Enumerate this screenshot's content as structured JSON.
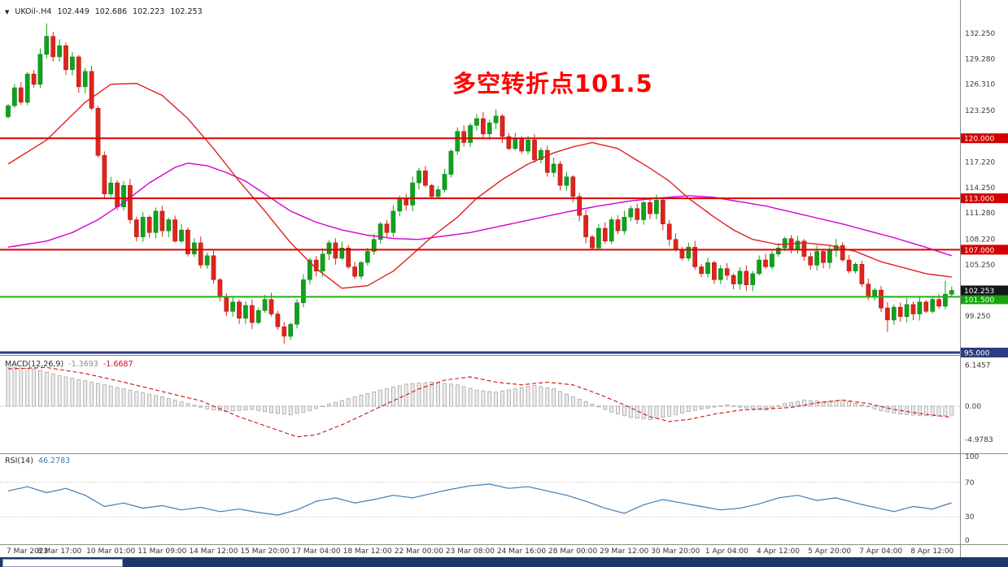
{
  "symbol_bar": {
    "collapse_icon": "▼",
    "title": "UKOil-.H4",
    "open": "102.449",
    "high": "102.686",
    "low": "102.223",
    "close": "102.253"
  },
  "annotation": {
    "text": "多空转折点101.5",
    "color": "#ff0000"
  },
  "colors": {
    "up": "#10a21c",
    "up_stroke": "#0b7a14",
    "down": "#df241c",
    "down_stroke": "#a81510",
    "ma_red": "#e02020",
    "ma_magenta": "#d400d4",
    "rsi": "#3f7cb6",
    "macd_bar_fill": "#ededed",
    "macd_bar_stroke": "#9e9e9e",
    "macd_signal": "#cc1111",
    "axis_text": "#3a3a3a",
    "separator": "#8c8c8c",
    "bottom_bar": "#1e3566"
  },
  "chart_data": {
    "type": "candlestick",
    "symbol": "UKOil-.H4",
    "timeframe": "H4",
    "ohlc_current": {
      "open": 102.449,
      "high": 102.686,
      "low": 102.223,
      "close": 102.253
    },
    "main": {
      "first_open": 122.5,
      "closes": [
        123.8,
        125.9,
        124.2,
        127.5,
        126.3,
        129.8,
        131.9,
        129.5,
        130.8,
        128.0,
        129.5,
        126.0,
        127.8,
        123.5,
        118.0,
        113.5,
        114.8,
        112.0,
        114.5,
        110.5,
        108.5,
        110.8,
        109.0,
        111.5,
        109.2,
        110.5,
        108.0,
        109.3,
        106.5,
        107.8,
        105.2,
        106.3,
        103.5,
        101.5,
        99.8,
        100.9,
        99.0,
        100.5,
        98.5,
        99.9,
        101.2,
        99.5,
        98.0,
        96.9,
        98.3,
        100.8,
        103.5,
        105.8,
        104.5,
        106.5,
        107.8,
        106.0,
        107.2,
        105.0,
        103.9,
        105.5,
        106.8,
        108.2,
        110.0,
        109.0,
        111.5,
        113.0,
        112.2,
        114.8,
        116.2,
        114.5,
        113.2,
        114.0,
        115.8,
        118.5,
        120.8,
        119.5,
        121.5,
        122.3,
        120.5,
        121.8,
        122.6,
        120.2,
        118.8,
        120.0,
        118.5,
        119.8,
        117.5,
        118.6,
        116.0,
        117.0,
        114.5,
        115.5,
        113.2,
        111.0,
        108.5,
        107.2,
        109.5,
        108.0,
        110.5,
        109.2,
        110.8,
        111.8,
        110.5,
        112.5,
        111.2,
        112.8,
        110.0,
        108.2,
        107.0,
        106.0,
        107.3,
        105.0,
        104.2,
        105.5,
        103.5,
        104.8,
        104.0,
        103.0,
        104.5,
        102.9,
        104.2,
        105.8,
        105.0,
        106.5,
        107.2,
        108.3,
        107.0,
        108.0,
        106.2,
        105.2,
        106.8,
        105.5,
        106.9,
        107.5,
        105.8,
        104.5,
        105.3,
        103.0,
        101.5,
        102.3,
        100.2,
        98.8,
        100.3,
        99.2,
        100.6,
        99.5,
        100.9,
        99.8,
        101.2,
        100.4,
        101.8,
        102.253
      ],
      "wick_overrides": {
        "6": {
          "h": 133.4
        },
        "15": {
          "l": 112.9
        },
        "43": {
          "l": 96.0
        },
        "76": {
          "h": 123.4
        },
        "137": {
          "l": 97.4
        },
        "146": {
          "h": 103.4
        }
      },
      "y_ticks": [
        {
          "label": "132.250",
          "price": 132.25
        },
        {
          "label": "129.280",
          "price": 129.28
        },
        {
          "label": "126.310",
          "price": 126.31
        },
        {
          "label": "123.250",
          "price": 123.25
        },
        {
          "label": "117.220",
          "price": 117.22
        },
        {
          "label": "114.250",
          "price": 114.25
        },
        {
          "label": "111.280",
          "price": 111.28
        },
        {
          "label": "108.220",
          "price": 108.22
        },
        {
          "label": "105.250",
          "price": 105.25
        },
        {
          "label": "99.250",
          "price": 99.25
        }
      ],
      "hlines": [
        {
          "price": 120.0,
          "label": "120.000",
          "color": "#dd0000",
          "width": 2,
          "badge": "#d40000"
        },
        {
          "price": 113.0,
          "label": "113.000",
          "color": "#dd0000",
          "width": 2,
          "badge": "#d40000"
        },
        {
          "price": 107.0,
          "label": "107.000",
          "color": "#dd0000",
          "width": 2,
          "badge": "#d40000"
        },
        {
          "price": 101.5,
          "label": "101.500",
          "color": "#1fb30e",
          "width": 2,
          "badge": "#17a30b",
          "dy": 3
        },
        {
          "price": 95.0,
          "label": "95.000",
          "color": "#2e3c80",
          "width": 3,
          "badge": "#2e3c80"
        }
      ],
      "current_price": {
        "label": "102.253",
        "price": 102.253,
        "bg": "#14181c"
      },
      "ma_red_anchors": [
        [
          0,
          117.0
        ],
        [
          6,
          119.8
        ],
        [
          12,
          124.2
        ],
        [
          16,
          126.3
        ],
        [
          20,
          126.4
        ],
        [
          24,
          125.0
        ],
        [
          28,
          122.3
        ],
        [
          32,
          118.8
        ],
        [
          36,
          115.0
        ],
        [
          40,
          111.5
        ],
        [
          44,
          107.8
        ],
        [
          48,
          104.8
        ],
        [
          52,
          102.5
        ],
        [
          56,
          102.8
        ],
        [
          60,
          104.5
        ],
        [
          62,
          105.8
        ],
        [
          66,
          108.5
        ],
        [
          70,
          110.8
        ],
        [
          73,
          113.0
        ],
        [
          77,
          115.2
        ],
        [
          81,
          117.0
        ],
        [
          85,
          118.3
        ],
        [
          88,
          119.0
        ],
        [
          91,
          119.5
        ],
        [
          95,
          118.8
        ],
        [
          100,
          116.5
        ],
        [
          103,
          115.0
        ],
        [
          106,
          113.0
        ],
        [
          110,
          110.8
        ],
        [
          113,
          109.3
        ],
        [
          116,
          108.2
        ],
        [
          120,
          107.6
        ],
        [
          124,
          107.8
        ],
        [
          128,
          107.5
        ],
        [
          132,
          106.8
        ],
        [
          136,
          105.6
        ],
        [
          140,
          104.8
        ],
        [
          143,
          104.2
        ],
        [
          147,
          103.8
        ]
      ],
      "ma_magenta_anchors": [
        [
          0,
          107.3
        ],
        [
          6,
          108.0
        ],
        [
          10,
          109.0
        ],
        [
          14,
          110.5
        ],
        [
          18,
          112.5
        ],
        [
          22,
          114.8
        ],
        [
          26,
          116.6
        ],
        [
          28,
          117.1
        ],
        [
          31,
          116.8
        ],
        [
          34,
          116.0
        ],
        [
          37,
          115.0
        ],
        [
          40,
          113.5
        ],
        [
          44,
          111.5
        ],
        [
          48,
          110.2
        ],
        [
          52,
          109.3
        ],
        [
          56,
          108.7
        ],
        [
          60,
          108.3
        ],
        [
          64,
          108.2
        ],
        [
          68,
          108.6
        ],
        [
          72,
          109.0
        ],
        [
          77,
          109.8
        ],
        [
          82,
          110.6
        ],
        [
          87,
          111.4
        ],
        [
          92,
          112.1
        ],
        [
          97,
          112.7
        ],
        [
          101,
          113.0
        ],
        [
          106,
          113.3
        ],
        [
          110,
          113.1
        ],
        [
          114,
          112.6
        ],
        [
          118,
          112.1
        ],
        [
          122,
          111.4
        ],
        [
          126,
          110.7
        ],
        [
          130,
          110.0
        ],
        [
          134,
          109.2
        ],
        [
          138,
          108.4
        ],
        [
          142,
          107.5
        ],
        [
          147,
          106.3
        ]
      ]
    },
    "macd": {
      "label": "MACD(12,26,9)",
      "value_main": "-1.3693",
      "value_signal": "-1.6687",
      "scale_labels": [
        {
          "v": 6.1457,
          "label": "6.1457"
        },
        {
          "v": 0,
          "label": "0.00"
        },
        {
          "v": -4.9783,
          "label": "-4.9783"
        }
      ],
      "hist_anchors": [
        [
          0,
          5.9
        ],
        [
          4,
          5.6
        ],
        [
          8,
          4.6
        ],
        [
          12,
          3.8
        ],
        [
          16,
          3.0
        ],
        [
          20,
          2.2
        ],
        [
          24,
          1.4
        ],
        [
          28,
          0.4
        ],
        [
          31,
          -0.4
        ],
        [
          34,
          -0.8
        ],
        [
          38,
          -0.5
        ],
        [
          41,
          -1.0
        ],
        [
          44,
          -1.3
        ],
        [
          47,
          -0.7
        ],
        [
          50,
          0.3
        ],
        [
          54,
          1.4
        ],
        [
          58,
          2.4
        ],
        [
          62,
          3.3
        ],
        [
          66,
          3.6
        ],
        [
          70,
          3.2
        ],
        [
          73,
          2.4
        ],
        [
          76,
          2.1
        ],
        [
          79,
          2.6
        ],
        [
          82,
          3.1
        ],
        [
          85,
          2.6
        ],
        [
          88,
          1.4
        ],
        [
          91,
          0.3
        ],
        [
          94,
          -0.9
        ],
        [
          97,
          -1.7
        ],
        [
          100,
          -2.0
        ],
        [
          103,
          -1.5
        ],
        [
          106,
          -0.8
        ],
        [
          109,
          -0.3
        ],
        [
          112,
          0.2
        ],
        [
          115,
          -0.3
        ],
        [
          118,
          -0.6
        ],
        [
          121,
          0.4
        ],
        [
          124,
          0.9
        ],
        [
          127,
          0.7
        ],
        [
          130,
          0.9
        ],
        [
          133,
          0.2
        ],
        [
          136,
          -0.7
        ],
        [
          139,
          -1.2
        ],
        [
          142,
          -1.4
        ],
        [
          145,
          -1.5
        ],
        [
          147,
          -1.37
        ]
      ],
      "signal_anchors": [
        [
          0,
          5.6
        ],
        [
          6,
          5.8
        ],
        [
          12,
          4.9
        ],
        [
          18,
          3.6
        ],
        [
          24,
          2.2
        ],
        [
          30,
          0.8
        ],
        [
          36,
          -1.6
        ],
        [
          42,
          -3.6
        ],
        [
          45,
          -4.6
        ],
        [
          48,
          -4.3
        ],
        [
          52,
          -2.8
        ],
        [
          56,
          -1.0
        ],
        [
          60,
          0.8
        ],
        [
          64,
          2.6
        ],
        [
          68,
          3.9
        ],
        [
          72,
          4.4
        ],
        [
          76,
          3.6
        ],
        [
          80,
          3.2
        ],
        [
          84,
          3.6
        ],
        [
          88,
          3.2
        ],
        [
          92,
          1.8
        ],
        [
          96,
          0.2
        ],
        [
          100,
          -1.6
        ],
        [
          103,
          -2.3
        ],
        [
          106,
          -2.0
        ],
        [
          110,
          -1.2
        ],
        [
          114,
          -0.6
        ],
        [
          118,
          -0.4
        ],
        [
          122,
          -0.2
        ],
        [
          126,
          0.5
        ],
        [
          130,
          0.9
        ],
        [
          134,
          0.4
        ],
        [
          138,
          -0.5
        ],
        [
          142,
          -1.1
        ],
        [
          147,
          -1.67
        ]
      ]
    },
    "rsi": {
      "label": "RSI(14)",
      "value": "46.2783",
      "scale_labels": [
        {
          "v": 100,
          "label": "100"
        },
        {
          "v": 70,
          "label": "70"
        },
        {
          "v": 30,
          "label": "30"
        },
        {
          "v": 0,
          "label": "0"
        }
      ],
      "levels": [
        70,
        30
      ],
      "anchors": [
        [
          0,
          60
        ],
        [
          3,
          65
        ],
        [
          6,
          58
        ],
        [
          9,
          63
        ],
        [
          12,
          55
        ],
        [
          15,
          42
        ],
        [
          18,
          46
        ],
        [
          21,
          40
        ],
        [
          24,
          43
        ],
        [
          27,
          38
        ],
        [
          30,
          41
        ],
        [
          33,
          36
        ],
        [
          36,
          39
        ],
        [
          39,
          35
        ],
        [
          42,
          32
        ],
        [
          45,
          38
        ],
        [
          48,
          48
        ],
        [
          51,
          52
        ],
        [
          54,
          46
        ],
        [
          57,
          50
        ],
        [
          60,
          55
        ],
        [
          63,
          52
        ],
        [
          66,
          57
        ],
        [
          69,
          62
        ],
        [
          72,
          66
        ],
        [
          75,
          68
        ],
        [
          78,
          63
        ],
        [
          81,
          65
        ],
        [
          84,
          60
        ],
        [
          87,
          55
        ],
        [
          90,
          48
        ],
        [
          93,
          40
        ],
        [
          96,
          34
        ],
        [
          99,
          44
        ],
        [
          102,
          50
        ],
        [
          105,
          46
        ],
        [
          108,
          42
        ],
        [
          111,
          38
        ],
        [
          114,
          40
        ],
        [
          117,
          45
        ],
        [
          120,
          52
        ],
        [
          123,
          55
        ],
        [
          126,
          49
        ],
        [
          129,
          52
        ],
        [
          132,
          46
        ],
        [
          135,
          41
        ],
        [
          138,
          36
        ],
        [
          141,
          42
        ],
        [
          144,
          39
        ],
        [
          147,
          46.3
        ]
      ]
    },
    "time_labels": [
      "7 Mar 2022",
      "8 Mar 17:00",
      "10 Mar 01:00",
      "11 Mar 09:00",
      "14 Mar 12:00",
      "15 Mar 20:00",
      "17 Mar 04:00",
      "18 Mar 12:00",
      "22 Mar 00:00",
      "23 Mar 08:00",
      "24 Mar 16:00",
      "28 Mar 00:00",
      "29 Mar 12:00",
      "30 Mar 20:00",
      "1 Apr 04:00",
      "4 Apr 12:00",
      "5 Apr 20:00",
      "7 Apr 04:00",
      "8 Apr 12:00"
    ]
  }
}
